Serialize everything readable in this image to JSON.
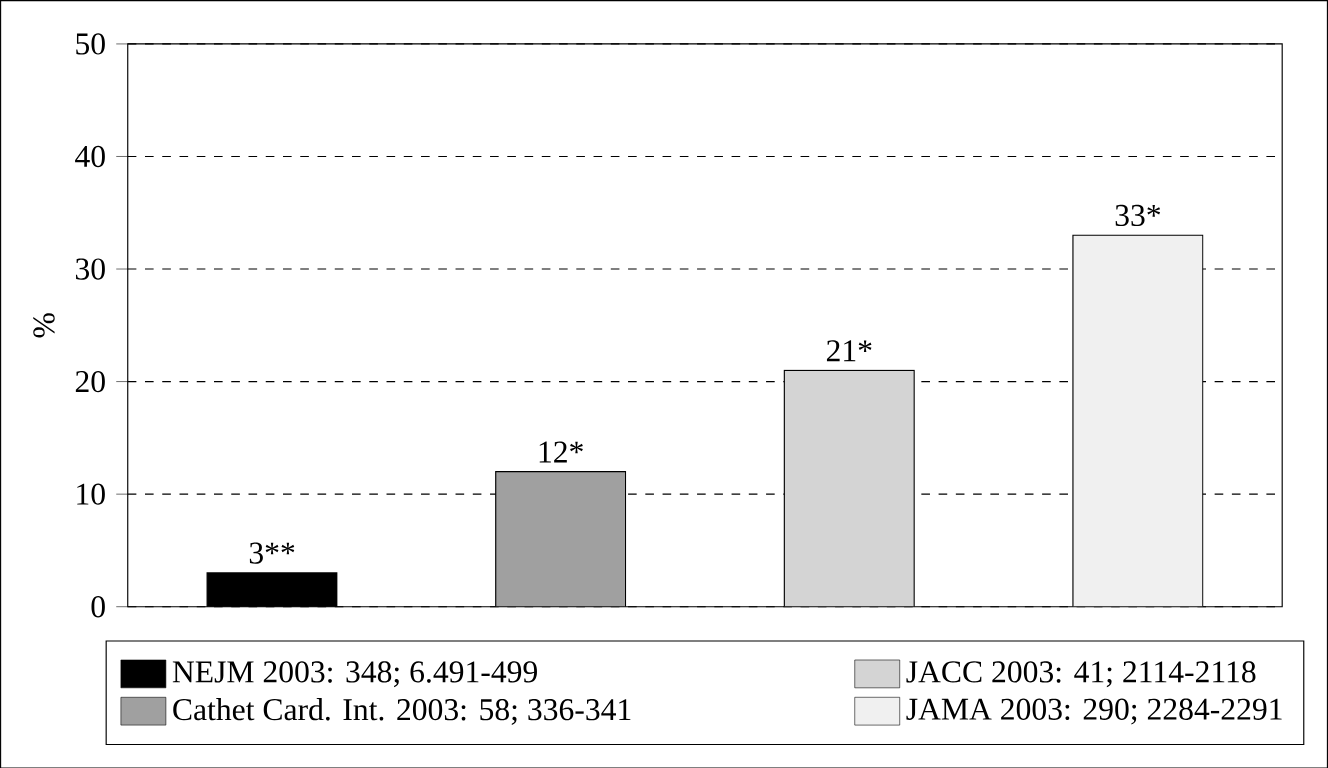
{
  "chart_data": {
    "type": "bar",
    "ylabel": "%",
    "categories": [
      null,
      null,
      null,
      null
    ],
    "series": [
      {
        "name": "NEJM 2003: 348; 6.491-499",
        "color": "#000000",
        "values": [
          3,
          null,
          null,
          null
        ],
        "value_labels": [
          "3**",
          null,
          null,
          null
        ]
      },
      {
        "name": "Cathet Card. Int. 2003: 58; 336-341",
        "color": "#a0a0a0",
        "values": [
          null,
          12,
          null,
          null
        ],
        "value_labels": [
          null,
          "12*",
          null,
          null
        ]
      },
      {
        "name": "JACC 2003: 41; 2114-2118",
        "color": "#d4d4d4",
        "values": [
          null,
          null,
          21,
          null
        ],
        "value_labels": [
          null,
          null,
          "21*",
          null
        ]
      },
      {
        "name": "JAMA 2003: 290; 2284-2291",
        "color": "#f0f0f0",
        "values": [
          null,
          null,
          null,
          33
        ],
        "value_labels": [
          null,
          null,
          null,
          "33*"
        ]
      }
    ],
    "ylim": [
      0,
      50
    ],
    "yticks": [
      0,
      10,
      20,
      30,
      40,
      50
    ],
    "grid": "y",
    "legend": "bottom"
  }
}
